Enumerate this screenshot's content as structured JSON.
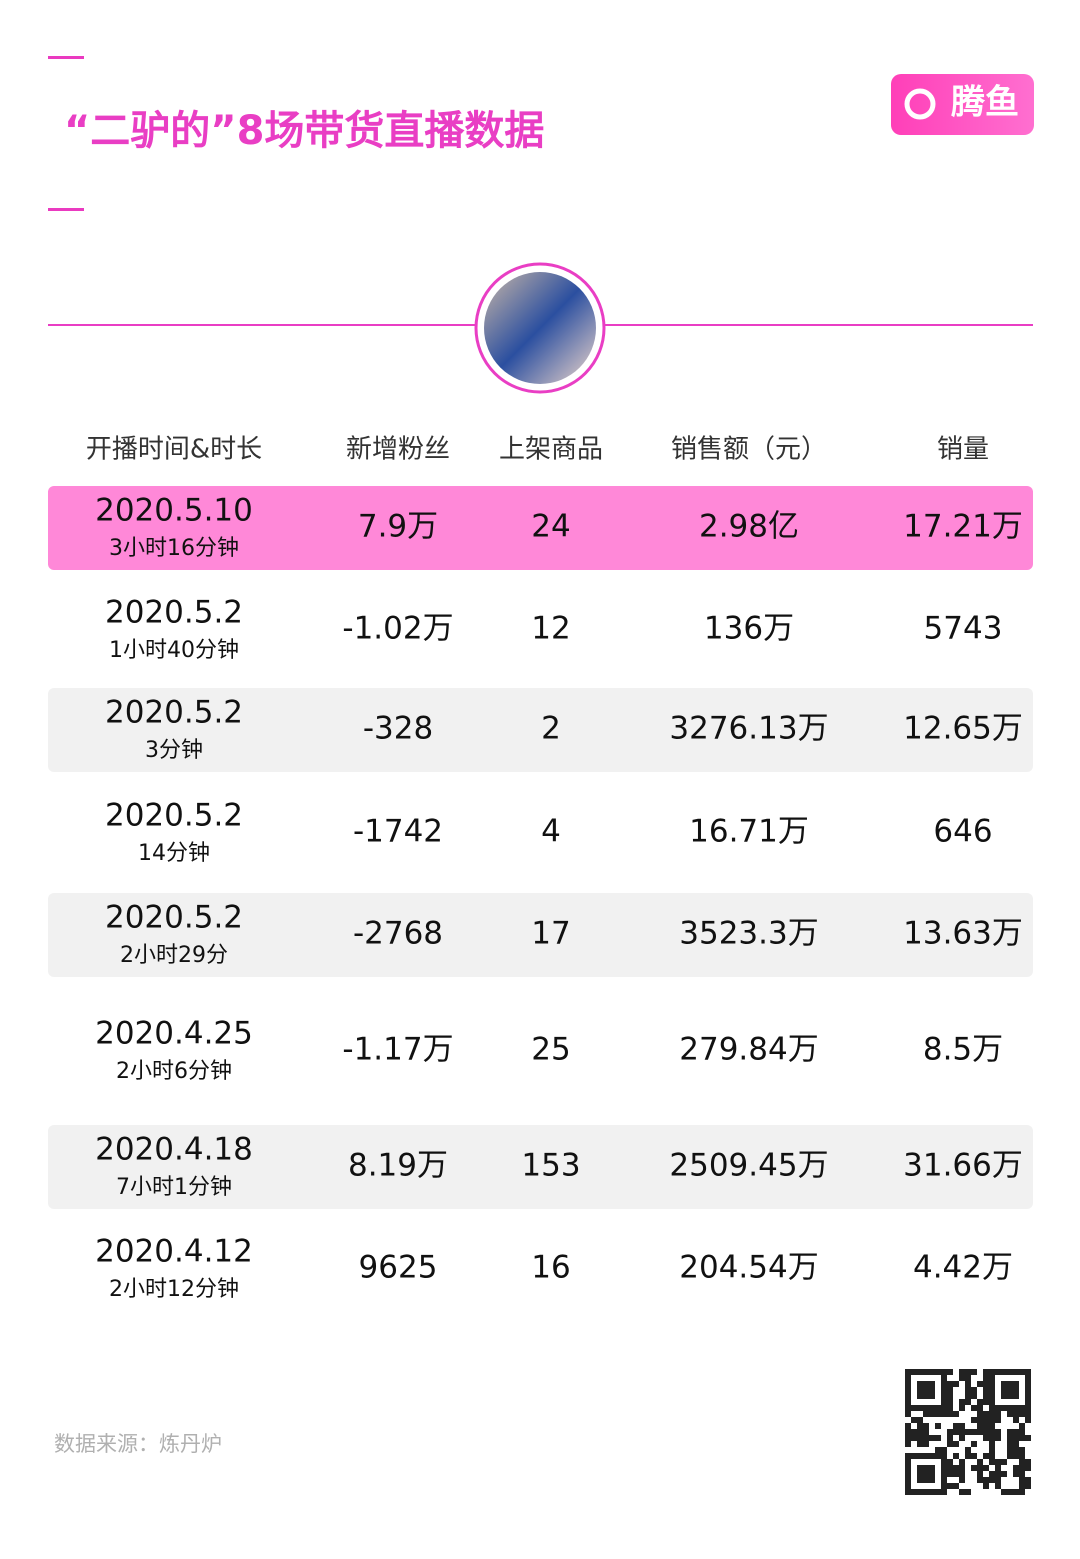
{
  "header": {
    "title": "“二驴的”8场带货直播数据",
    "logo": "腾鱼"
  },
  "table": {
    "columns": [
      "开播时间&时长",
      "新增粉丝",
      "上架商品",
      "销售额（元）",
      "销量"
    ],
    "rows": [
      {
        "date": "2020.5.10",
        "duration": "3小时16分钟",
        "fans": "7.9万",
        "items": "24",
        "sales": "2.98亿",
        "volume": "17.21万"
      },
      {
        "date": "2020.5.2",
        "duration": "1小时40分钟",
        "fans": "-1.02万",
        "items": "12",
        "sales": "136万",
        "volume": "5743"
      },
      {
        "date": "2020.5.2",
        "duration": "3分钟",
        "fans": "-328",
        "items": "2",
        "sales": "3276.13万",
        "volume": "12.65万"
      },
      {
        "date": "2020.5.2",
        "duration": "14分钟",
        "fans": "-1742",
        "items": "4",
        "sales": "16.71万",
        "volume": "646"
      },
      {
        "date": "2020.5.2",
        "duration": "2小时29分",
        "fans": "-2768",
        "items": "17",
        "sales": "3523.3万",
        "volume": "13.63万"
      },
      {
        "date": "2020.4.25",
        "duration": "2小时6分钟",
        "fans": "-1.17万",
        "items": "25",
        "sales": "279.84万",
        "volume": "8.5万"
      },
      {
        "date": "2020.4.18",
        "duration": "7小时1分钟",
        "fans": "8.19万",
        "items": "153",
        "sales": "2509.45万",
        "volume": "31.66万"
      },
      {
        "date": "2020.4.12",
        "duration": "2小时12分钟",
        "fans": "9625",
        "items": "16",
        "sales": "204.54万",
        "volume": "4.42万"
      }
    ]
  },
  "footer": {
    "source": "数据来源：炼丹炉"
  }
}
